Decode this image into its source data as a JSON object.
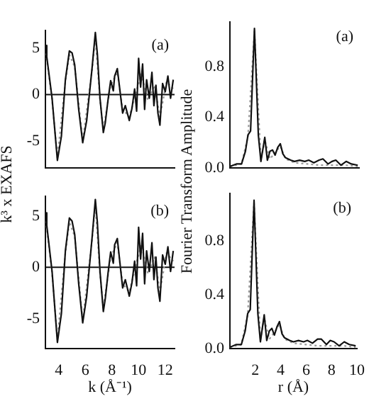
{
  "chart_data": [
    {
      "type": "line",
      "tick_labels": "y",
      "xlim": [
        3,
        12.7
      ],
      "ylim": [
        -7.9,
        6.9
      ],
      "yticks": [
        -5,
        0,
        5
      ],
      "grid": false,
      "legend": false,
      "marker": "none",
      "annotations": [
        "(a)"
      ],
      "ref_lines": [
        {
          "axis": "y",
          "value": 0
        }
      ],
      "series": [
        {
          "color": "#111111",
          "line_style": "solid",
          "x": [
            3.0,
            3.1,
            3.5,
            3.9,
            4.2,
            4.5,
            4.8,
            5.0,
            5.2,
            5.5,
            5.8,
            6.1,
            6.5,
            6.75,
            6.9,
            7.1,
            7.35,
            7.5,
            7.7,
            7.9,
            8.1,
            8.2,
            8.4,
            8.6,
            8.8,
            9.0,
            9.3,
            9.5,
            9.7,
            9.85,
            10.0,
            10.15,
            10.3,
            10.45,
            10.6,
            10.8,
            11.0,
            11.15,
            11.3,
            11.45,
            11.6,
            11.8,
            12.0,
            12.2,
            12.4,
            12.6
          ],
          "values": [
            5.3,
            4.1,
            -0.4,
            -7.1,
            -4.5,
            1.6,
            4.7,
            4.5,
            3.2,
            -1.6,
            -5.2,
            -2.8,
            2.8,
            6.7,
            4.4,
            -0.4,
            -4.1,
            -3.0,
            -0.6,
            1.5,
            0.4,
            2.0,
            2.8,
            0.4,
            -2.0,
            -1.2,
            -2.8,
            -1.5,
            0.6,
            -1.8,
            3.9,
            0.8,
            3.3,
            -1.6,
            1.6,
            -0.4,
            2.4,
            -1.2,
            1.0,
            -2.0,
            -3.3,
            1.2,
            0.3,
            2.0,
            -0.4,
            1.6
          ]
        },
        {
          "color": "#999999",
          "line_style": "dotted",
          "x": [
            3.0,
            3.5,
            3.9,
            4.5,
            4.8,
            5.2,
            5.8,
            6.5,
            6.75,
            7.1,
            7.35,
            7.9,
            8.4,
            8.8,
            9.3,
            9.8,
            10.2,
            10.7,
            11.2,
            11.6,
            12.1,
            12.6
          ],
          "values": [
            5.0,
            -0.6,
            -6.8,
            1.4,
            4.3,
            3.0,
            -5.0,
            2.6,
            6.2,
            -0.6,
            -3.8,
            1.0,
            2.4,
            -1.6,
            -2.4,
            0.2,
            2.2,
            -0.6,
            1.0,
            -2.4,
            1.4,
            0.6
          ]
        }
      ]
    },
    {
      "type": "line",
      "xlabel": "k (Å⁻¹)",
      "ylabel": "k³ x EXAFS",
      "xlim": [
        3,
        12.7
      ],
      "ylim": [
        -7.9,
        6.9
      ],
      "xticks": [
        4,
        6,
        8,
        10,
        12
      ],
      "yticks": [
        -5,
        0,
        5
      ],
      "grid": false,
      "legend": false,
      "marker": "none",
      "annotations": [
        "(b)"
      ],
      "ref_lines": [
        {
          "axis": "y",
          "value": 0
        }
      ],
      "series": [
        {
          "color": "#111111",
          "line_style": "solid",
          "x": [
            3.0,
            3.1,
            3.5,
            3.9,
            4.2,
            4.5,
            4.8,
            5.0,
            5.2,
            5.5,
            5.8,
            6.1,
            6.5,
            6.75,
            6.9,
            7.1,
            7.35,
            7.5,
            7.7,
            7.9,
            8.1,
            8.2,
            8.4,
            8.6,
            8.8,
            9.0,
            9.3,
            9.5,
            9.7,
            9.85,
            10.0,
            10.15,
            10.3,
            10.45,
            10.6,
            10.8,
            11.0,
            11.15,
            11.3,
            11.45,
            11.6,
            11.8,
            12.0,
            12.2,
            12.4,
            12.6
          ],
          "values": [
            5.3,
            4.1,
            -0.4,
            -7.3,
            -4.5,
            1.6,
            4.8,
            4.5,
            3.2,
            -1.6,
            -5.4,
            -2.8,
            2.8,
            6.6,
            4.4,
            -0.4,
            -4.3,
            -3.0,
            -0.6,
            1.5,
            0.4,
            2.2,
            2.8,
            0.4,
            -2.0,
            -1.2,
            -2.8,
            -1.5,
            0.6,
            -1.8,
            3.9,
            0.8,
            3.3,
            -1.6,
            1.6,
            -0.4,
            2.4,
            -1.2,
            1.0,
            -2.0,
            -3.3,
            1.2,
            0.3,
            2.0,
            -0.4,
            1.6
          ]
        },
        {
          "color": "#999999",
          "line_style": "dotted",
          "x": [
            3.0,
            3.5,
            3.9,
            4.5,
            4.8,
            5.2,
            5.8,
            6.5,
            6.75,
            7.1,
            7.35,
            7.9,
            8.4,
            8.8,
            9.3,
            9.8,
            10.2,
            10.7,
            11.2,
            11.6,
            12.1,
            12.6
          ],
          "values": [
            5.0,
            -0.6,
            -7.0,
            1.4,
            4.4,
            3.0,
            -5.2,
            2.6,
            6.1,
            -0.6,
            -4.0,
            1.0,
            2.4,
            -1.6,
            -2.4,
            0.2,
            2.2,
            -0.6,
            1.0,
            -2.4,
            1.4,
            0.6
          ]
        }
      ]
    },
    {
      "type": "line",
      "tick_labels": "y",
      "xlim": [
        0,
        10
      ],
      "ylim": [
        0,
        1.15
      ],
      "yticks": [
        {
          "value": 0,
          "label": "0.0"
        },
        0.4,
        0.8
      ],
      "grid": false,
      "legend": false,
      "marker": "none",
      "annotations": [
        "(a)"
      ],
      "series": [
        {
          "color": "#111111",
          "line_style": "solid",
          "x": [
            0.0,
            0.5,
            0.9,
            1.2,
            1.4,
            1.6,
            1.9,
            2.2,
            2.4,
            2.7,
            2.9,
            3.1,
            3.3,
            3.5,
            3.7,
            3.9,
            4.1,
            4.3,
            4.7,
            5.0,
            5.4,
            5.8,
            6.1,
            6.5,
            6.9,
            7.2,
            7.6,
            7.9,
            8.2,
            8.6,
            9.0,
            9.4,
            9.9
          ],
          "values": [
            0.01,
            0.03,
            0.03,
            0.13,
            0.26,
            0.29,
            1.1,
            0.26,
            0.05,
            0.24,
            0.06,
            0.13,
            0.14,
            0.1,
            0.16,
            0.19,
            0.11,
            0.08,
            0.06,
            0.05,
            0.06,
            0.05,
            0.06,
            0.04,
            0.06,
            0.07,
            0.03,
            0.05,
            0.06,
            0.02,
            0.05,
            0.03,
            0.02
          ]
        },
        {
          "color": "#999999",
          "line_style": "dotted",
          "x": [
            0.0,
            0.9,
            1.4,
            1.9,
            2.4,
            2.7,
            3.1,
            3.5,
            3.9,
            4.3,
            5.0,
            6.0,
            7.0,
            8.0,
            9.0,
            9.9
          ],
          "values": [
            0.01,
            0.03,
            0.25,
            1.08,
            0.06,
            0.22,
            0.07,
            0.12,
            0.17,
            0.07,
            0.04,
            0.03,
            0.02,
            0.02,
            0.02,
            0.01
          ]
        }
      ]
    },
    {
      "type": "line",
      "xlabel": "r (Å)",
      "ylabel": "Fourier Transform Amplitude",
      "xlim": [
        0,
        10
      ],
      "ylim": [
        0,
        1.15
      ],
      "xticks": [
        2,
        4,
        6,
        8,
        10
      ],
      "yticks": [
        {
          "value": 0,
          "label": "0.0"
        },
        0.4,
        0.8
      ],
      "grid": false,
      "legend": false,
      "marker": "none",
      "annotations": [
        "(b)"
      ],
      "series": [
        {
          "color": "#111111",
          "line_style": "solid",
          "x": [
            0.0,
            0.5,
            0.9,
            1.2,
            1.4,
            1.6,
            1.9,
            2.2,
            2.4,
            2.7,
            2.9,
            3.1,
            3.3,
            3.5,
            3.7,
            3.9,
            4.1,
            4.3,
            4.7,
            5.0,
            5.4,
            5.8,
            6.1,
            6.5,
            6.9,
            7.2,
            7.6,
            7.9,
            8.2,
            8.6,
            9.0,
            9.4,
            9.9
          ],
          "values": [
            0.01,
            0.03,
            0.03,
            0.13,
            0.26,
            0.29,
            1.1,
            0.26,
            0.05,
            0.25,
            0.06,
            0.13,
            0.15,
            0.1,
            0.16,
            0.2,
            0.11,
            0.08,
            0.06,
            0.05,
            0.06,
            0.05,
            0.06,
            0.04,
            0.07,
            0.07,
            0.03,
            0.06,
            0.05,
            0.02,
            0.05,
            0.03,
            0.02
          ]
        },
        {
          "color": "#999999",
          "line_style": "dotted",
          "x": [
            0.0,
            0.9,
            1.4,
            1.9,
            2.4,
            2.7,
            3.1,
            3.5,
            3.9,
            4.3,
            5.0,
            6.0,
            7.0,
            8.0,
            9.0,
            9.9
          ],
          "values": [
            0.01,
            0.03,
            0.25,
            1.08,
            0.06,
            0.23,
            0.07,
            0.12,
            0.18,
            0.07,
            0.04,
            0.03,
            0.02,
            0.02,
            0.02,
            0.01
          ]
        }
      ]
    }
  ]
}
